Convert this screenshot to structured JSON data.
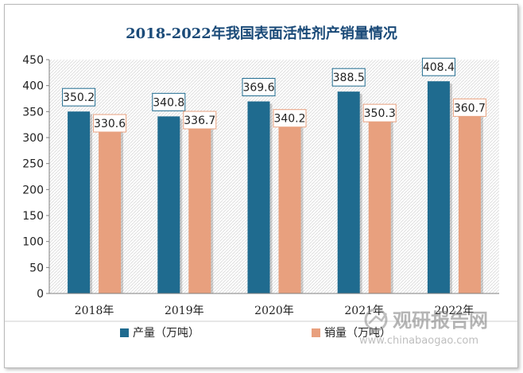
{
  "chart_data": {
    "type": "bar",
    "title": "2018-2022年我国表面活性剂产销量情况",
    "categories": [
      "2018年",
      "2019年",
      "2020年",
      "2021年",
      "2022年"
    ],
    "series": [
      {
        "name": "产量（万吨）",
        "values": [
          350.2,
          340.8,
          369.6,
          388.5,
          408.4
        ],
        "labels": [
          "350.2",
          "340.8",
          "369.6",
          "388.5",
          "408.4"
        ],
        "color": "#1f6b8f"
      },
      {
        "name": "销量（万吨）",
        "values": [
          330.6,
          336.7,
          340.2,
          350.3,
          360.7
        ],
        "labels": [
          "330.6",
          "336.7",
          "340.2",
          "350.3",
          "360.7"
        ],
        "color": "#e8a07e"
      }
    ],
    "ylim": [
      0,
      450
    ],
    "yticks": [
      "0",
      "50",
      "100",
      "150",
      "200",
      "250",
      "300",
      "350",
      "400",
      "450"
    ],
    "grid": false,
    "legend_position": "bottom"
  },
  "watermark": {
    "brand": "观研报告网",
    "url": "www.chinabaogao.com"
  },
  "colors": {
    "title": "#1a4a78",
    "label_border": "#1f6b8f",
    "label_border_alt": "#e8a07e"
  }
}
